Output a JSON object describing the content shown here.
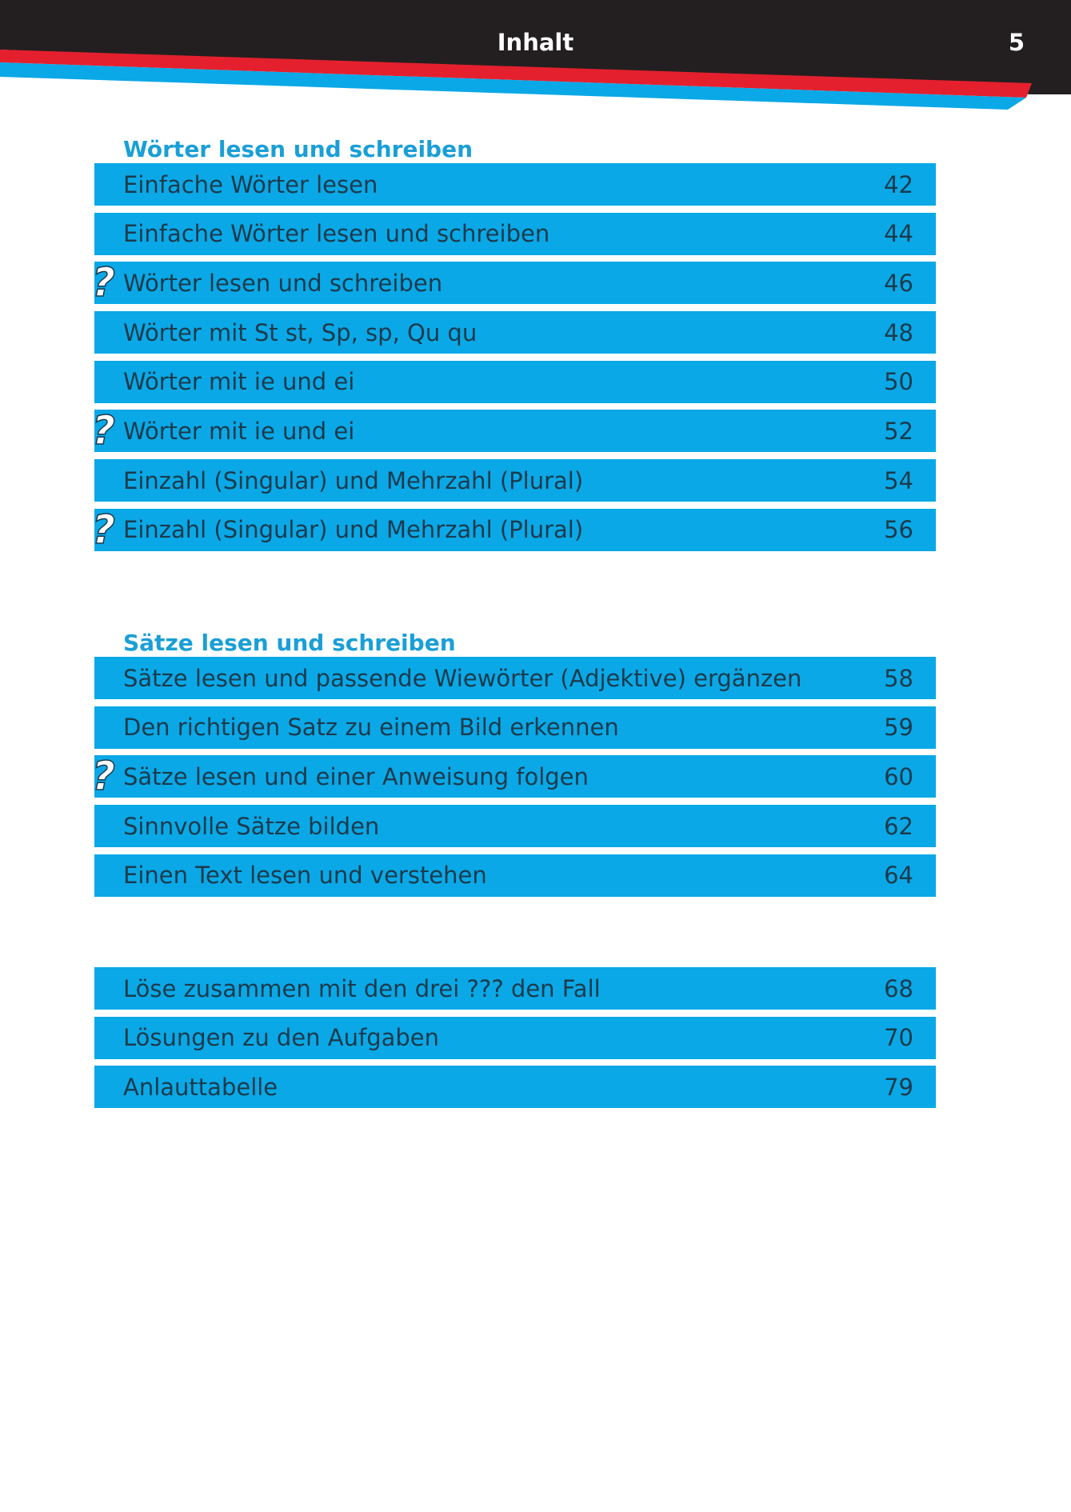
{
  "header": {
    "title": "Inhalt",
    "page_number": "5",
    "colors": {
      "bar": "#231f20",
      "red": "#e4202e",
      "blue": "#0aa8e6"
    }
  },
  "sections": [
    {
      "title": "Wörter lesen und schreiben",
      "items": [
        {
          "label": "Einfache Wörter lesen",
          "page": "42",
          "quiz": false
        },
        {
          "label": "Einfache Wörter lesen und schreiben",
          "page": "44",
          "quiz": false
        },
        {
          "label": "Wörter lesen und schreiben",
          "page": "46",
          "quiz": true
        },
        {
          "label": "Wörter mit St st, Sp, sp, Qu qu",
          "page": "48",
          "quiz": false
        },
        {
          "label": "Wörter mit ie und ei",
          "page": "50",
          "quiz": false
        },
        {
          "label": "Wörter mit ie und ei",
          "page": "52",
          "quiz": true
        },
        {
          "label": "Einzahl (Singular) und Mehrzahl (Plural)",
          "page": "54",
          "quiz": false
        },
        {
          "label": "Einzahl (Singular) und Mehrzahl (Plural)",
          "page": "56",
          "quiz": true
        }
      ]
    },
    {
      "title": "Sätze lesen und schreiben",
      "items": [
        {
          "label": "Sätze lesen und passende Wiewörter (Adjektive) ergänzen",
          "page": "58",
          "quiz": false
        },
        {
          "label": "Den richtigen Satz zu einem Bild erkennen",
          "page": "59",
          "quiz": false
        },
        {
          "label": "Sätze lesen und einer Anweisung folgen",
          "page": "60",
          "quiz": true
        },
        {
          "label": "Sinnvolle Sätze bilden",
          "page": "62",
          "quiz": false
        },
        {
          "label": "Einen Text lesen und verstehen",
          "page": "64",
          "quiz": false
        }
      ]
    },
    {
      "title": "",
      "items": [
        {
          "label": "Löse zusammen mit den drei ??? den Fall",
          "page": "68",
          "quiz": false
        },
        {
          "label": "Lösungen zu den Aufgaben",
          "page": "70",
          "quiz": false
        },
        {
          "label": "Anlauttabelle",
          "page": "79",
          "quiz": false
        }
      ]
    }
  ],
  "quiz_icon": {
    "glyph": "?",
    "name": "question-mark-icon"
  }
}
